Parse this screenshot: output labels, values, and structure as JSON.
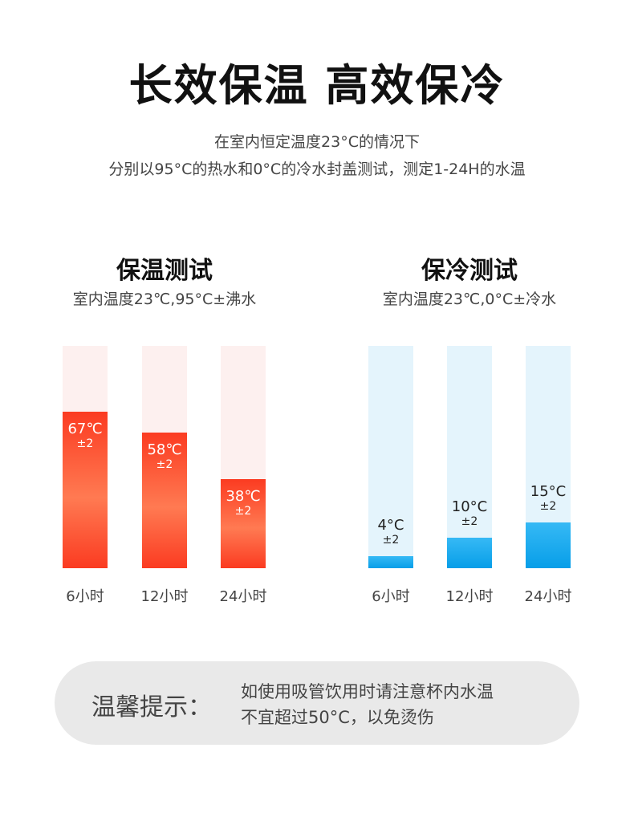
{
  "header": {
    "title": "长效保温 高效保冷",
    "subtitle_lines": [
      "在室内恒定温度23°C的情况下",
      "分别以95°C的热水和0°C的冷水封盖测试，测定1-24H的水温"
    ]
  },
  "chart_data": [
    {
      "type": "bar",
      "title": "保温测试",
      "subtitle": "室内温度23℃,95°C±沸水",
      "categories": [
        "6小时",
        "12小时",
        "24小时"
      ],
      "values": [
        67,
        58,
        38
      ],
      "value_labels": [
        "67℃",
        "58℃",
        "38℃"
      ],
      "tolerance_labels": [
        "±2",
        "±2",
        "±2"
      ],
      "ylim": [
        0,
        95
      ],
      "colors": {
        "fill": "#fb3b21",
        "track": "#fdf0ef"
      }
    },
    {
      "type": "bar",
      "title": "保冷测试",
      "subtitle": "室内温度23℃,0°C±冷水",
      "categories": [
        "6小时",
        "12小时",
        "24小时"
      ],
      "values": [
        4,
        10,
        15
      ],
      "value_labels": [
        "4°C",
        "10°C",
        "15°C"
      ],
      "tolerance_labels": [
        "±2",
        "±2",
        "±2"
      ],
      "ylim": [
        0,
        73
      ],
      "colors": {
        "fill": "#079ee8",
        "track": "#e4f4fc"
      }
    }
  ],
  "tip": {
    "title": "温馨提示：",
    "lines": [
      "如使用吸管饮用时请注意杯内水温",
      "不宜超过50°C，以免烫伤"
    ]
  }
}
